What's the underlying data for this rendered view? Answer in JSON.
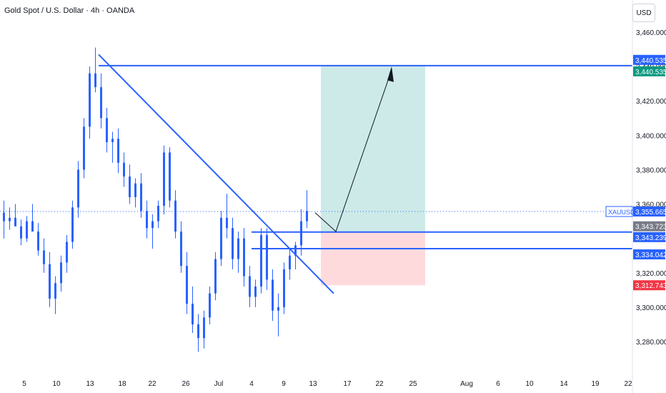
{
  "header": {
    "title": "Gold Spot / U.S. Dollar · 4h · OANDA",
    "currency_button": "USD"
  },
  "chart_data": {
    "type": "candlestick",
    "symbol": "XAUUSD",
    "ylim": [
      3270,
      3470
    ],
    "y_ticks": [
      "3,460.000",
      "3,440.000",
      "3,420.000",
      "3,400.000",
      "3,380.000",
      "3,360.000",
      "3,340.000",
      "3,320.000",
      "3,300.000",
      "3,280.000"
    ],
    "y_tick_values": [
      3460,
      3440,
      3420,
      3400,
      3380,
      3360,
      3340,
      3320,
      3300,
      3280
    ],
    "x_ticks": [
      "5",
      "10",
      "13",
      "18",
      "22",
      "26",
      "Jul",
      "4",
      "9",
      "13",
      "17",
      "22",
      "25",
      "Aug",
      "6",
      "10",
      "14",
      "19",
      "22"
    ],
    "candles_ohlc": [
      [
        3355,
        3362,
        3340,
        3350
      ],
      [
        3350,
        3358,
        3345,
        3352
      ],
      [
        3352,
        3360,
        3348,
        3347
      ],
      [
        3347,
        3351,
        3336,
        3340
      ],
      [
        3340,
        3353,
        3338,
        3350
      ],
      [
        3350,
        3360,
        3346,
        3344
      ],
      [
        3344,
        3349,
        3330,
        3333
      ],
      [
        3333,
        3340,
        3320,
        3325
      ],
      [
        3325,
        3332,
        3300,
        3305
      ],
      [
        3305,
        3318,
        3296,
        3314
      ],
      [
        3314,
        3330,
        3309,
        3326
      ],
      [
        3326,
        3342,
        3320,
        3338
      ],
      [
        3338,
        3362,
        3334,
        3358
      ],
      [
        3358,
        3385,
        3352,
        3380
      ],
      [
        3380,
        3410,
        3375,
        3405
      ],
      [
        3405,
        3440,
        3398,
        3436
      ],
      [
        3436,
        3451,
        3425,
        3428
      ],
      [
        3428,
        3436,
        3404,
        3410
      ],
      [
        3410,
        3416,
        3390,
        3396
      ],
      [
        3396,
        3402,
        3384,
        3398
      ],
      [
        3398,
        3404,
        3378,
        3384
      ],
      [
        3384,
        3390,
        3370,
        3376
      ],
      [
        3376,
        3383,
        3360,
        3364
      ],
      [
        3364,
        3375,
        3358,
        3372
      ],
      [
        3372,
        3378,
        3352,
        3356
      ],
      [
        3356,
        3362,
        3340,
        3346
      ],
      [
        3346,
        3354,
        3334,
        3350
      ],
      [
        3350,
        3362,
        3346,
        3359
      ],
      [
        3359,
        3394,
        3354,
        3390
      ],
      [
        3390,
        3393,
        3358,
        3362
      ],
      [
        3362,
        3368,
        3340,
        3344
      ],
      [
        3344,
        3350,
        3320,
        3324
      ],
      [
        3324,
        3332,
        3296,
        3302
      ],
      [
        3302,
        3312,
        3285,
        3290
      ],
      [
        3290,
        3296,
        3274,
        3282
      ],
      [
        3282,
        3298,
        3276,
        3294
      ],
      [
        3294,
        3312,
        3290,
        3308
      ],
      [
        3308,
        3332,
        3304,
        3328
      ],
      [
        3328,
        3356,
        3324,
        3352
      ],
      [
        3352,
        3366,
        3340,
        3346
      ],
      [
        3346,
        3352,
        3322,
        3328
      ],
      [
        3328,
        3344,
        3320,
        3340
      ],
      [
        3340,
        3346,
        3312,
        3318
      ],
      [
        3318,
        3324,
        3300,
        3306
      ],
      [
        3306,
        3316,
        3300,
        3312
      ],
      [
        3312,
        3346,
        3308,
        3342
      ],
      [
        3342,
        3346,
        3310,
        3316
      ],
      [
        3316,
        3322,
        3292,
        3298
      ],
      [
        3298,
        3308,
        3283,
        3300
      ],
      [
        3300,
        3326,
        3296,
        3322
      ],
      [
        3322,
        3334,
        3316,
        3330
      ],
      [
        3330,
        3338,
        3322,
        3336
      ],
      [
        3336,
        3357,
        3330,
        3350
      ],
      [
        3350,
        3368,
        3346,
        3356
      ]
    ],
    "price_label": {
      "name": "XAUUSD",
      "value": "3,355.665",
      "color": "#2962ff"
    },
    "axis_tags": [
      {
        "value": "3,440.535",
        "price": 3440.535,
        "color": "#2962ff",
        "offset": -8
      },
      {
        "value": "3,440.535",
        "price": 3440.535,
        "color": "#089981",
        "offset": 8
      },
      {
        "value": "3,343.723",
        "price": 3343.723,
        "color": "#787b86",
        "offset": -8
      },
      {
        "value": "3,343.239",
        "price": 3343.239,
        "color": "#2962ff",
        "offset": 6
      },
      {
        "value": "3,334.042",
        "price": 3334.042,
        "color": "#2962ff",
        "offset": 8
      },
      {
        "value": "3,312.743",
        "price": 3312.743,
        "color": "#f23645",
        "offset": 0
      }
    ],
    "levels": [
      {
        "price": 3440.535,
        "color": "#2962ff"
      },
      {
        "price": 3343.723,
        "color": "#2962ff"
      },
      {
        "price": 3334.042,
        "color": "#2962ff"
      }
    ],
    "trendline": {
      "from": [
        3,
        3447
      ],
      "to": [
        37,
        3308
      ]
    },
    "position": {
      "entry": 3343.723,
      "target": 3440.535,
      "stop": 3312.743,
      "profit_color": "#b2dfdb",
      "loss_color": "#ffcdd2"
    },
    "colors": {
      "up": "#2962ff",
      "down": "#2962ff",
      "grid": "#ffffff",
      "axis_text": "#131722"
    }
  }
}
